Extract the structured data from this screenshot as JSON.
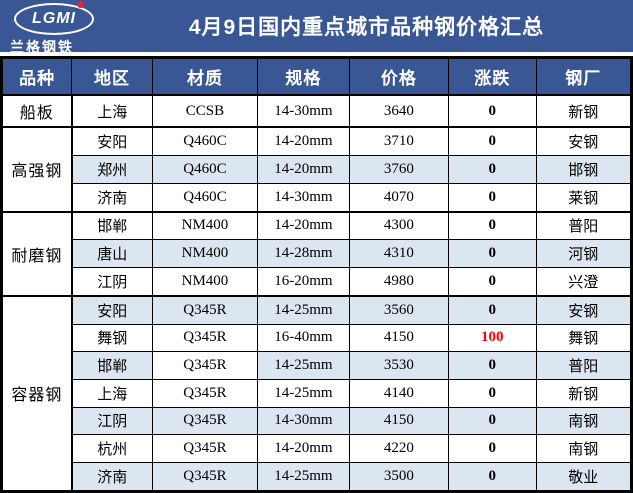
{
  "banner": {
    "logo": {
      "text": "LGMI",
      "subtext": "兰格钢铁"
    },
    "title": "4月9日国内重点城市品种钢价格汇总"
  },
  "colors": {
    "banner_bg": "#3a5795",
    "header_bg": "#3a5795",
    "shaded_row": "#dce6f1",
    "change_up_red": "#fe0000",
    "border": "#000000",
    "logo_dot_red": "#e8242b"
  },
  "table": {
    "headers": [
      "品种",
      "地区",
      "材质",
      "规格",
      "价格",
      "涨跌",
      "钢厂"
    ],
    "groups": [
      {
        "category": "船板",
        "rows": [
          {
            "region": "上海",
            "material": "CCSB",
            "spec": "14-30mm",
            "price": "3640",
            "change": "0",
            "mill": "新钢",
            "shaded": false
          }
        ]
      },
      {
        "category": "高强钢",
        "rows": [
          {
            "region": "安阳",
            "material": "Q460C",
            "spec": "14-20mm",
            "price": "3710",
            "change": "0",
            "mill": "安钢",
            "shaded": false
          },
          {
            "region": "郑州",
            "material": "Q460C",
            "spec": "14-20mm",
            "price": "3760",
            "change": "0",
            "mill": "邯钢",
            "shaded": true
          },
          {
            "region": "济南",
            "material": "Q460C",
            "spec": "14-30mm",
            "price": "4070",
            "change": "0",
            "mill": "莱钢",
            "shaded": false
          }
        ]
      },
      {
        "category": "耐磨钢",
        "rows": [
          {
            "region": "邯郸",
            "material": "NM400",
            "spec": "14-20mm",
            "price": "4300",
            "change": "0",
            "mill": "普阳",
            "shaded": false
          },
          {
            "region": "唐山",
            "material": "NM400",
            "spec": "14-28mm",
            "price": "4310",
            "change": "0",
            "mill": "河钢",
            "shaded": true
          },
          {
            "region": "江阴",
            "material": "NM400",
            "spec": "16-20mm",
            "price": "4980",
            "change": "0",
            "mill": "兴澄",
            "shaded": false
          }
        ]
      },
      {
        "category": "容器钢",
        "rows": [
          {
            "region": "安阳",
            "material": "Q345R",
            "spec": "14-25mm",
            "price": "3560",
            "change": "0",
            "mill": "安钢",
            "shaded": true
          },
          {
            "region": "舞钢",
            "material": "Q345R",
            "spec": "16-40mm",
            "price": "4150",
            "change": "100",
            "change_red": true,
            "mill": "舞钢",
            "shaded": false
          },
          {
            "region": "邯郸",
            "material": "Q345R",
            "spec": "14-25mm",
            "price": "3530",
            "change": "0",
            "mill": "普阳",
            "shaded": true,
            "material_unshaded": true
          },
          {
            "region": "上海",
            "material": "Q345R",
            "spec": "14-25mm",
            "price": "4140",
            "change": "0",
            "mill": "新钢",
            "shaded": false
          },
          {
            "region": "江阴",
            "material": "Q345R",
            "spec": "14-30mm",
            "price": "4150",
            "change": "0",
            "mill": "南钢",
            "shaded": true
          },
          {
            "region": "杭州",
            "material": "Q345R",
            "spec": "14-20mm",
            "price": "4220",
            "change": "0",
            "mill": "南钢",
            "shaded": false
          },
          {
            "region": "济南",
            "material": "Q345R",
            "spec": "14-25mm",
            "price": "3500",
            "change": "0",
            "mill": "敬业",
            "shaded": true
          }
        ]
      }
    ]
  }
}
